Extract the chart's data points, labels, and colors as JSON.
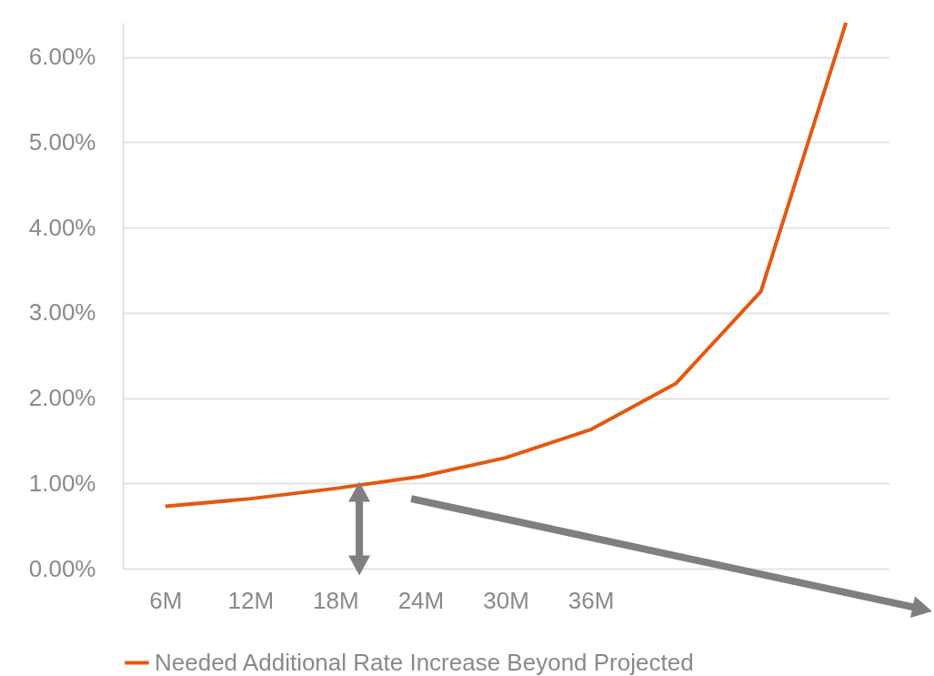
{
  "chart_data": {
    "type": "line",
    "categories": [
      "6M",
      "12M",
      "18M",
      "24M",
      "30M",
      "36M",
      null,
      null,
      null
    ],
    "series": [
      {
        "name": "Needed Additional Rate Increase Beyond Projected",
        "color": "#e4580f",
        "values": [
          0.73,
          0.82,
          0.94,
          1.08,
          1.3,
          1.63,
          2.17,
          3.25,
          6.4
        ]
      }
    ],
    "ylim": [
      0,
      6.4
    ],
    "yticks": [
      {
        "value": 0,
        "label": "0.00%"
      },
      {
        "value": 1,
        "label": "1.00%"
      },
      {
        "value": 2,
        "label": "2.00%"
      },
      {
        "value": 3,
        "label": "3.00%"
      },
      {
        "value": 4,
        "label": "4.00%"
      },
      {
        "value": 5,
        "label": "5.00%"
      },
      {
        "value": 6,
        "label": "6.00%"
      }
    ],
    "grid": "y",
    "legend": "bottom"
  }
}
